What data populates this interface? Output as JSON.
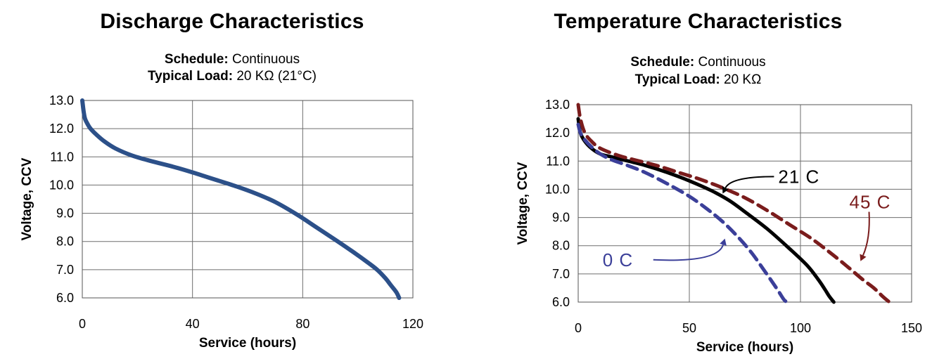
{
  "chart_data": [
    {
      "type": "line",
      "title": "Discharge Characteristics",
      "schedule_label": "Schedule:",
      "schedule_value": "Continuous",
      "load_label": "Typical Load:",
      "load_value": "20 KΩ (21°C)",
      "xlabel": "Service (hours)",
      "ylabel": "Voltage, CCV",
      "xlim": [
        0,
        120
      ],
      "ylim": [
        6.0,
        13.0
      ],
      "x_ticks": [
        "0",
        "40",
        "80",
        "120"
      ],
      "y_ticks": [
        "6.0",
        "7.0",
        "8.0",
        "9.0",
        "10.0",
        "11.0",
        "12.0",
        "13.0"
      ],
      "grid": true,
      "series": [
        {
          "color": "#2c5089",
          "style": "solid",
          "x": [
            0,
            0.5,
            1,
            2,
            3,
            5,
            8,
            12,
            18,
            25,
            33,
            40,
            48,
            56,
            63,
            70,
            78,
            85,
            92,
            98,
            103,
            107,
            110,
            112,
            114,
            115
          ],
          "y": [
            13.0,
            12.6,
            12.35,
            12.15,
            12.0,
            11.8,
            11.55,
            11.3,
            11.05,
            10.85,
            10.65,
            10.45,
            10.2,
            9.95,
            9.7,
            9.4,
            8.95,
            8.5,
            8.05,
            7.65,
            7.3,
            7.0,
            6.7,
            6.45,
            6.2,
            6.0
          ]
        }
      ]
    },
    {
      "type": "line",
      "title": "Temperature Characteristics",
      "schedule_label": "Schedule:",
      "schedule_value": "Continuous",
      "load_label": "Typical Load:",
      "load_value": "20 KΩ",
      "xlabel": "Service (hours)",
      "ylabel": "Voltage, CCV",
      "xlim": [
        0,
        150
      ],
      "ylim": [
        6.0,
        13.0
      ],
      "x_ticks": [
        "0",
        "50",
        "100",
        "150"
      ],
      "y_ticks": [
        "6.0",
        "7.0",
        "8.0",
        "9.0",
        "10.0",
        "11.0",
        "12.0",
        "13.0"
      ],
      "grid": true,
      "series": [
        {
          "name": "21 C",
          "color": "#000000",
          "style": "solid",
          "x": [
            0,
            1,
            3,
            6,
            10,
            15,
            20,
            30,
            40,
            50,
            60,
            68,
            75,
            85,
            95,
            103,
            108,
            111,
            113,
            115
          ],
          "y": [
            12.5,
            12.0,
            11.7,
            11.45,
            11.25,
            11.15,
            11.05,
            10.85,
            10.6,
            10.3,
            9.95,
            9.6,
            9.2,
            8.6,
            7.9,
            7.3,
            6.8,
            6.45,
            6.2,
            6.0
          ]
        },
        {
          "name": "45 C",
          "color": "#7a1c1c",
          "style": "dashed",
          "x": [
            0,
            1,
            3,
            6,
            10,
            18,
            25,
            35,
            45,
            55,
            65,
            75,
            85,
            95,
            105,
            115,
            122,
            128,
            133,
            137,
            140
          ],
          "y": [
            13.0,
            12.5,
            12.0,
            11.7,
            11.45,
            11.2,
            11.05,
            10.85,
            10.6,
            10.35,
            10.05,
            9.7,
            9.25,
            8.75,
            8.25,
            7.65,
            7.2,
            6.8,
            6.5,
            6.2,
            6.0
          ]
        },
        {
          "name": "0 C",
          "color": "#3b3f99",
          "style": "dashed",
          "x": [
            0,
            1,
            3,
            6,
            10,
            15,
            22,
            30,
            40,
            50,
            58,
            65,
            72,
            78,
            83,
            87,
            90,
            92,
            93,
            94
          ],
          "y": [
            12.3,
            12.0,
            11.75,
            11.5,
            11.25,
            11.05,
            10.85,
            10.6,
            10.2,
            9.75,
            9.3,
            8.85,
            8.3,
            7.75,
            7.2,
            6.75,
            6.4,
            6.15,
            6.05,
            6.0
          ]
        }
      ],
      "annotations": [
        {
          "label": "21 C",
          "color": "#000000",
          "text_x": 90,
          "text_y": 10.45,
          "target_x": 65,
          "target_y": 9.85
        },
        {
          "label": "45 C",
          "color": "#7a1c1c",
          "text_x": 122,
          "text_y": 9.55,
          "target_x": 127,
          "target_y": 7.45
        },
        {
          "label": "0 C",
          "color": "#3b3f99",
          "text_x": 11,
          "text_y": 7.5,
          "target_x": 66,
          "target_y": 8.25
        }
      ]
    }
  ]
}
